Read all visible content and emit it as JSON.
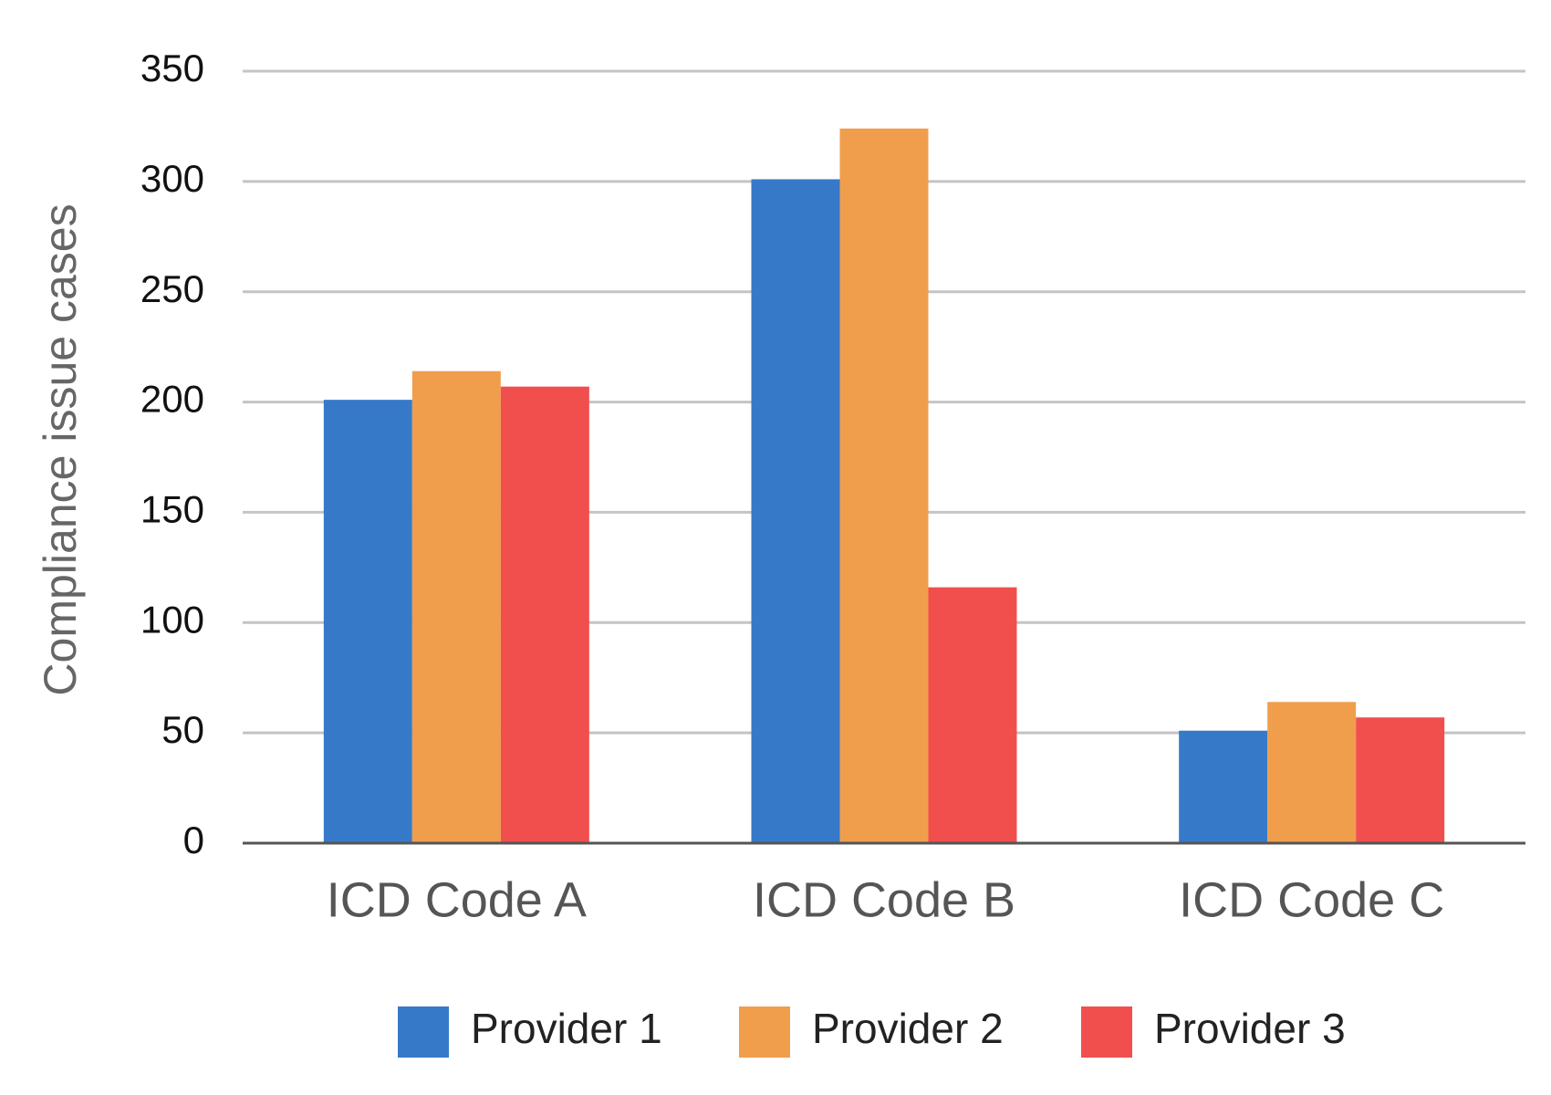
{
  "chart_data": {
    "type": "bar",
    "categories": [
      "ICD Code A",
      "ICD Code B",
      "ICD Code C"
    ],
    "series": [
      {
        "name": "Provider 1",
        "color": "#3679c8",
        "values": [
          201,
          301,
          51
        ]
      },
      {
        "name": "Provider 2",
        "color": "#f09e4c",
        "values": [
          214,
          324,
          64
        ]
      },
      {
        "name": "Provider 3",
        "color": "#f04f4e",
        "values": [
          207,
          116,
          57
        ]
      }
    ],
    "title": "",
    "xlabel": "",
    "ylabel": "Compliance issue cases",
    "ylim": [
      0,
      350
    ],
    "yticks": [
      0,
      50,
      100,
      150,
      200,
      250,
      300,
      350
    ],
    "grid": true,
    "legend_position": "bottom"
  }
}
